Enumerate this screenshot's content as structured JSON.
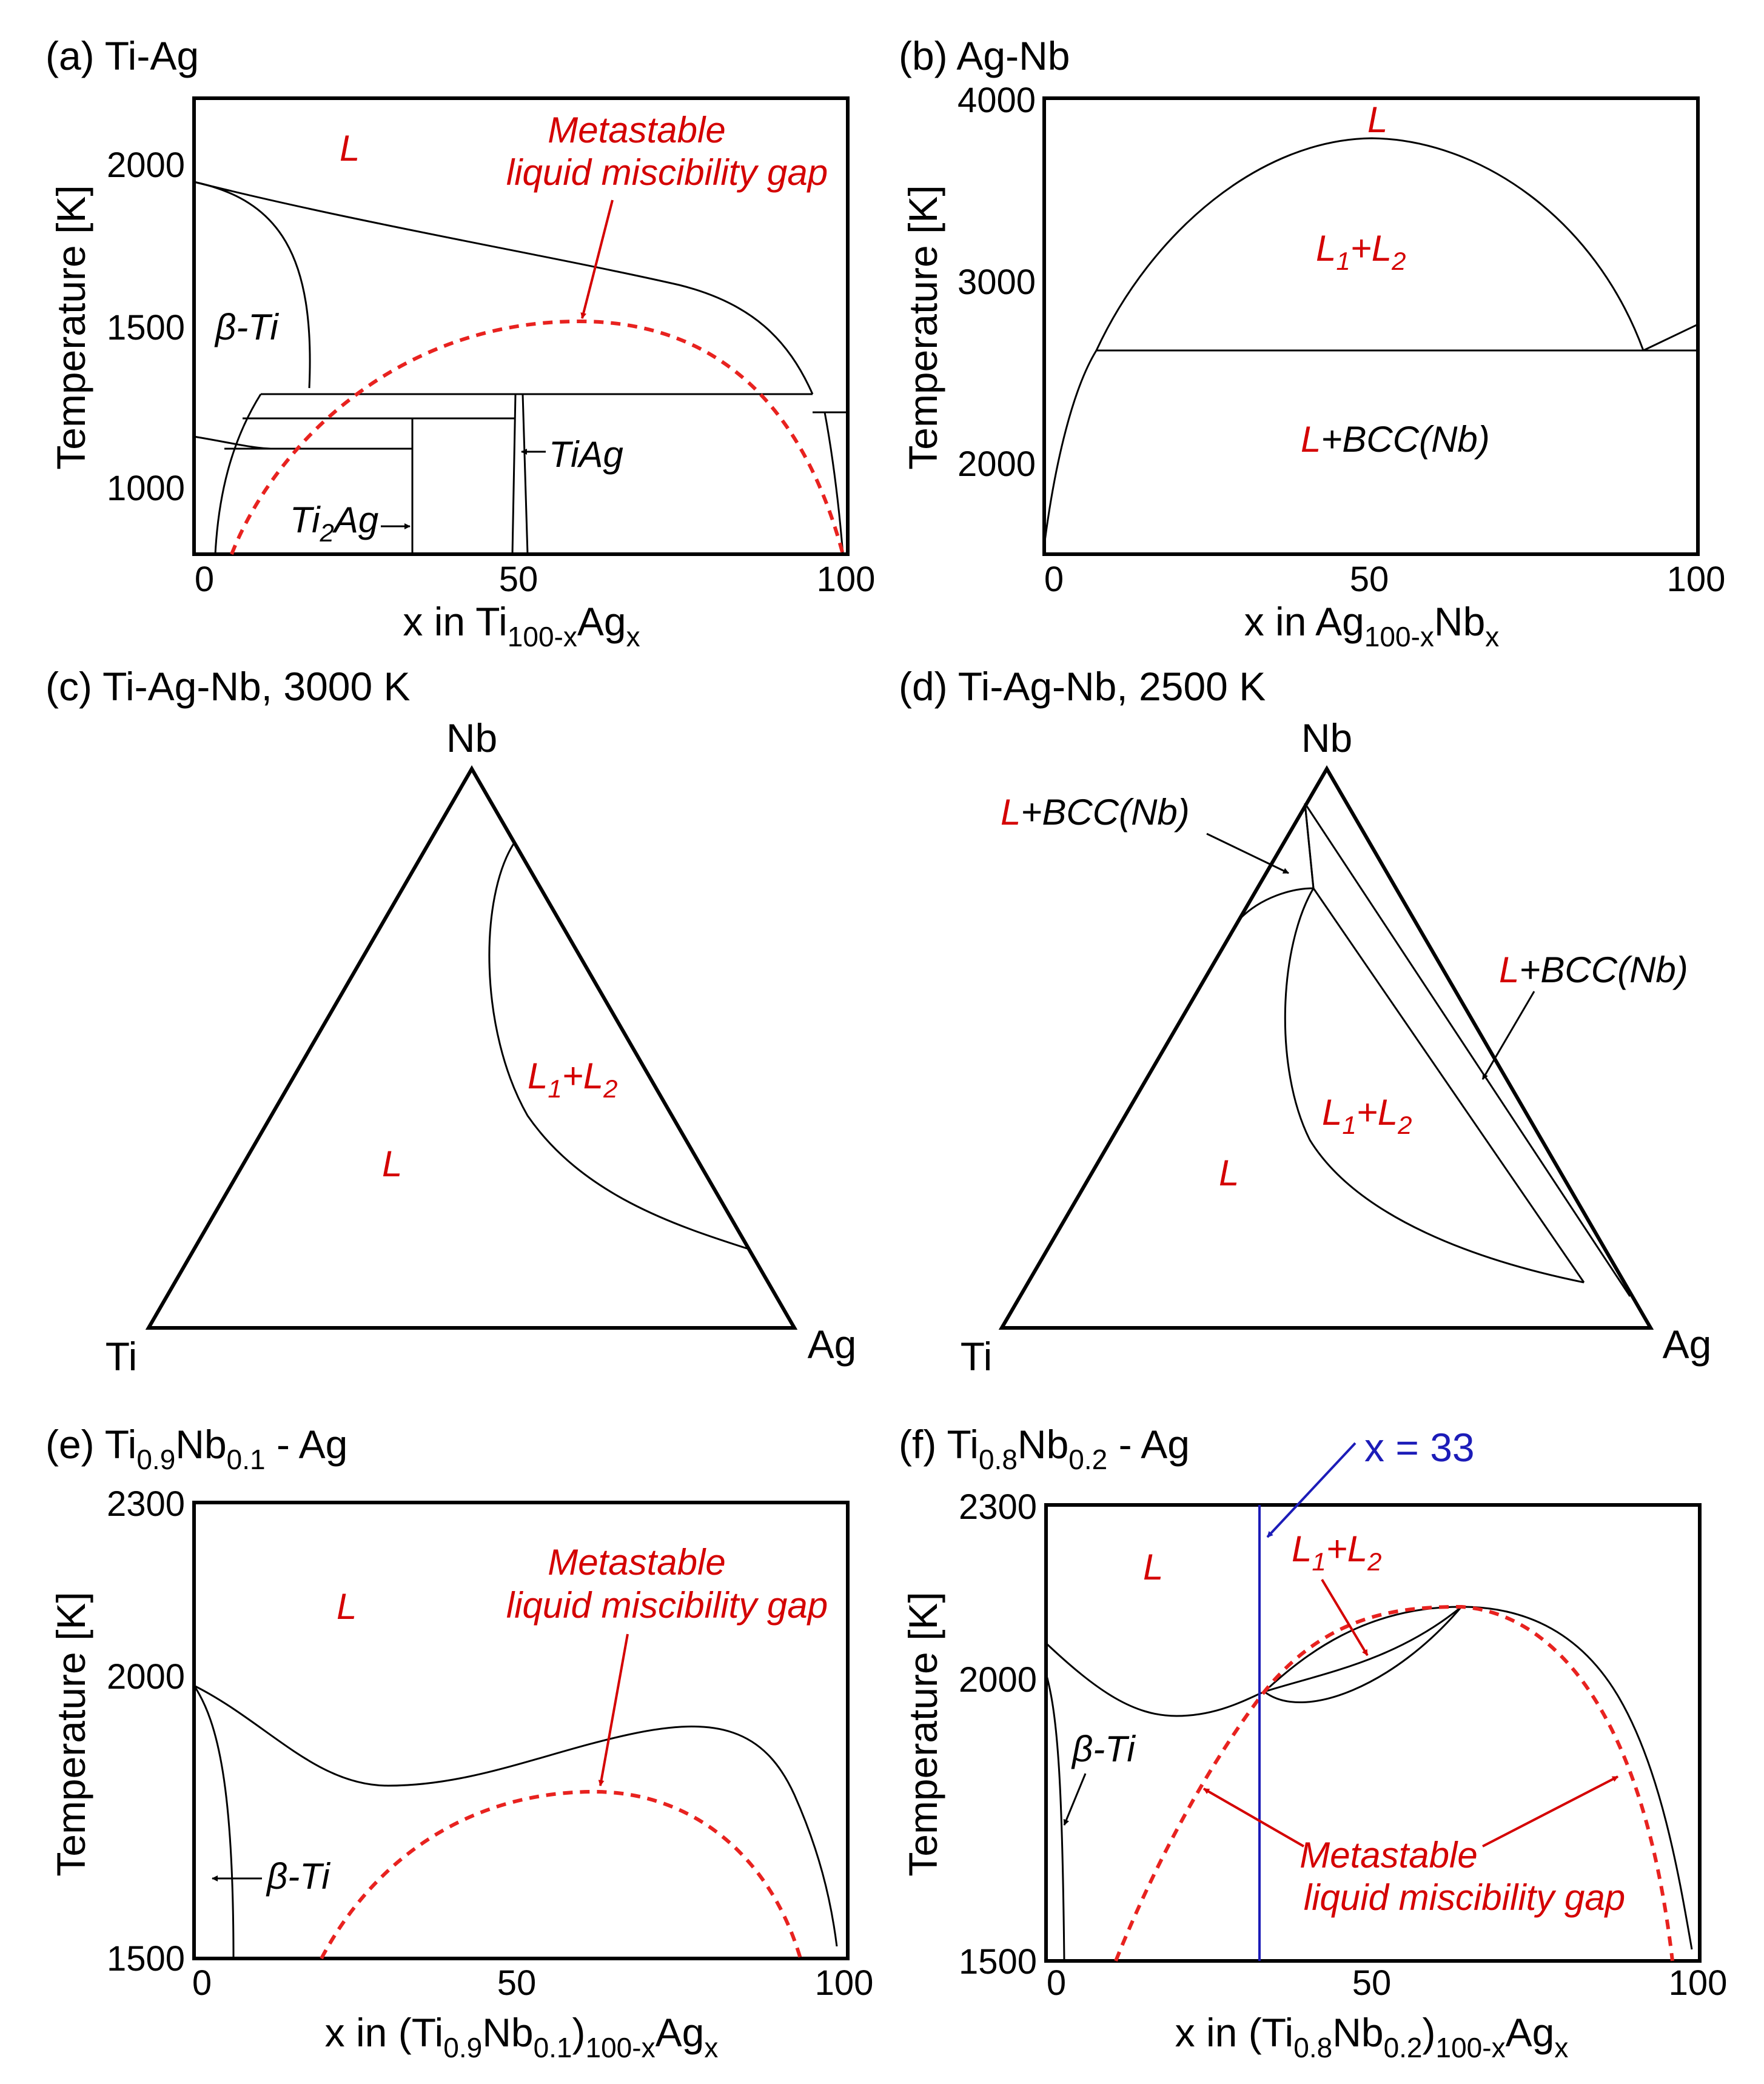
{
  "panels": {
    "a": {
      "title": "(a) Ti-Ag",
      "ylabel": "Temperature [K]",
      "xlabel": "x in Ti",
      "xlabel_sub": "100-x",
      "xlabel_suffix": "Ag",
      "xlabel_sub2": "x",
      "yticks": [
        "2000",
        "1500",
        "1000"
      ],
      "xticks": [
        "0",
        "50",
        "100"
      ],
      "label_L": "L",
      "label_betaTi": "β-Ti",
      "label_TiAg": "TiAg",
      "label_Ti2Ag": "Ti",
      "label_Ti2Ag_sub": "2",
      "label_Ti2Ag_suffix": "Ag",
      "label_gap1": "Metastable",
      "label_gap2": "liquid miscibility gap"
    },
    "b": {
      "title": "(b) Ag-Nb",
      "ylabel": "Temperature [K]",
      "xlabel": "x in Ag",
      "xlabel_sub": "100-x",
      "xlabel_suffix": "Nb",
      "xlabel_sub2": "x",
      "yticks": [
        "4000",
        "3000",
        "2000"
      ],
      "xticks": [
        "0",
        "50",
        "100"
      ],
      "label_L": "L",
      "label_L1": "L",
      "label_L1_sub": "1",
      "label_plus": "+L",
      "label_L2_sub": "2",
      "label_LBCC_L": "L",
      "label_LBCC_rest": "+BCC(Nb)"
    },
    "c": {
      "title": "(c) Ti-Ag-Nb, 3000 K",
      "vertex_top": "Nb",
      "vertex_left": "Ti",
      "vertex_right": "Ag",
      "label_L": "L",
      "label_L1": "L",
      "label_L1_sub": "1",
      "label_plus": "+L",
      "label_L2_sub": "2"
    },
    "d": {
      "title": "(d) Ti-Ag-Nb, 2500 K",
      "vertex_top": "Nb",
      "vertex_left": "Ti",
      "vertex_right": "Ag",
      "label_L": "L",
      "label_L1": "L",
      "label_L1_sub": "1",
      "label_plus": "+L",
      "label_L2_sub": "2",
      "label_LBCC1_L": "L",
      "label_LBCC1_rest": "+BCC(Nb)",
      "label_LBCC2_L": "L",
      "label_LBCC2_rest": "+BCC(Nb)"
    },
    "e": {
      "title_pre": "(e) Ti",
      "title_sub1": "0.9",
      "title_mid": "Nb",
      "title_sub2": "0.1",
      "title_post": " - Ag",
      "ylabel": "Temperature [K]",
      "xlabel_pre": "x in (Ti",
      "xlabel_sub1": "0.9",
      "xlabel_mid": "Nb",
      "xlabel_sub2": "0.1",
      "xlabel_close": ")",
      "xlabel_sub3": "100-x",
      "xlabel_suffix": "Ag",
      "xlabel_sub4": "x",
      "yticks": [
        "2300",
        "2000",
        "1500"
      ],
      "xticks": [
        "0",
        "50",
        "100"
      ],
      "label_L": "L",
      "label_betaTi": "β-Ti",
      "label_gap1": "Metastable",
      "label_gap2": "liquid miscibility gap"
    },
    "f": {
      "title_pre": "(f) Ti",
      "title_sub1": "0.8",
      "title_mid": "Nb",
      "title_sub2": "0.2",
      "title_post": " - Ag",
      "ylabel": "Temperature [K]",
      "xlabel_pre": "x in (Ti",
      "xlabel_sub1": "0.8",
      "xlabel_mid": "Nb",
      "xlabel_sub2": "0.2",
      "xlabel_close": ")",
      "xlabel_sub3": "100-x",
      "xlabel_suffix": "Ag",
      "xlabel_sub4": "x",
      "yticks": [
        "2300",
        "2000",
        "1500"
      ],
      "xticks": [
        "0",
        "50",
        "100"
      ],
      "label_L": "L",
      "label_L1": "L",
      "label_L1_sub": "1",
      "label_plus": "+L",
      "label_L2_sub": "2",
      "label_betaTi": "β-Ti",
      "label_x33": "x = 33",
      "label_gap1": "Metastable",
      "label_gap2": "liquid miscibility gap"
    }
  },
  "chart_data": [
    {
      "type": "line",
      "title": "(a) Ti-Ag",
      "xlabel": "x in Ti100-xAgx",
      "ylabel": "Temperature [K]",
      "xlim": [
        0,
        100
      ],
      "ylim": [
        800,
        2200
      ],
      "series": [
        {
          "name": "liquidus",
          "x": [
            0,
            10,
            30,
            50,
            70,
            85,
            95,
            100
          ],
          "y": [
            1941,
            1880,
            1790,
            1740,
            1690,
            1600,
            1350,
            1235
          ]
        },
        {
          "name": "metastable liquid miscibility gap",
          "x": [
            4,
            20,
            40,
            59,
            80,
            95,
            99
          ],
          "y": [
            800,
            1230,
            1450,
            1515,
            1420,
            1130,
            800
          ]
        }
      ]
    },
    {
      "type": "line",
      "title": "(b) Ag-Nb",
      "xlabel": "x in Ag100-xNbx",
      "ylabel": "Temperature [K]",
      "xlim": [
        0,
        100
      ],
      "ylim": [
        1500,
        4000
      ],
      "series": [
        {
          "name": "liquid miscibility dome",
          "x": [
            8,
            20,
            35,
            50,
            65,
            80,
            93
          ],
          "y": [
            2620,
            3300,
            3680,
            3780,
            3660,
            3250,
            2620
          ]
        },
        {
          "name": "monotectic",
          "x": [
            8,
            100
          ],
          "y": [
            2620,
            2620
          ]
        }
      ]
    },
    {
      "type": "line",
      "title": "(e) Ti0.9Nb0.1 - Ag",
      "xlabel": "x in (Ti0.9Nb0.1)100-xAgx",
      "ylabel": "Temperature [K]",
      "xlim": [
        0,
        100
      ],
      "ylim": [
        1500,
        2300
      ],
      "series": [
        {
          "name": "liquidus",
          "x": [
            0,
            15,
            30,
            50,
            70,
            85,
            97
          ],
          "y": [
            1980,
            1840,
            1805,
            1860,
            1915,
            1800,
            1530
          ]
        },
        {
          "name": "metastable liquid miscibility gap",
          "x": [
            20,
            35,
            50,
            63,
            80,
            93
          ],
          "y": [
            1500,
            1700,
            1810,
            1840,
            1740,
            1500
          ]
        }
      ]
    },
    {
      "type": "line",
      "title": "(f) Ti0.8Nb0.2 - Ag",
      "xlabel": "x in (Ti0.8Nb0.2)100-xAgx",
      "ylabel": "Temperature [K]",
      "xlim": [
        0,
        100
      ],
      "ylim": [
        1500,
        2300
      ],
      "series": [
        {
          "name": "liquidus",
          "x": [
            0,
            10,
            20,
            33,
            50,
            64,
            72,
            85,
            98
          ],
          "y": [
            2060,
            1960,
            1935,
            1970,
            2080,
            2130,
            2135,
            2000,
            1530
          ]
        },
        {
          "name": "metastable liquid miscibility gap",
          "x": [
            10,
            20,
            33,
            50,
            64,
            80,
            95
          ],
          "y": [
            1500,
            1790,
            1970,
            2090,
            2130,
            1950,
            1500
          ]
        },
        {
          "name": "x = 33",
          "x": [
            33,
            33
          ],
          "y": [
            1500,
            2300
          ]
        }
      ]
    }
  ]
}
